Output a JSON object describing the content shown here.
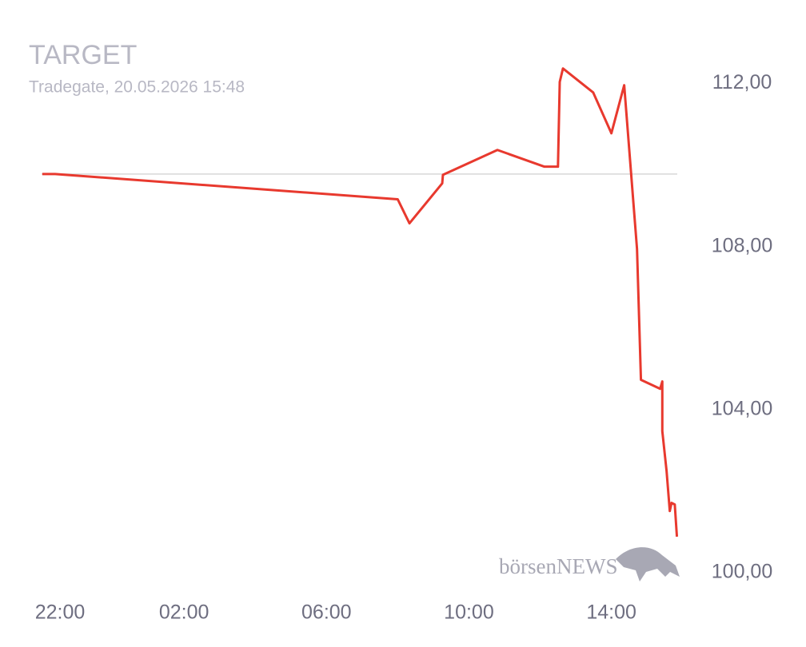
{
  "chart_data": {
    "type": "line",
    "title": "TARGET",
    "subtitle": "Tradegate, 20.05.2026 15:48",
    "watermark": "börsenNEWS",
    "x": [
      22.02,
      22.38,
      32.0,
      32.33,
      33.25,
      33.27,
      34.8,
      36.12,
      36.5,
      36.55,
      36.64,
      37.49,
      38.0,
      38.36,
      38.72,
      38.83,
      39.37,
      39.43,
      39.43,
      39.55,
      39.64,
      39.69,
      39.78,
      39.84
    ],
    "series": [
      {
        "name": "TARGET",
        "color": "#e8392e",
        "values": [
          109.78,
          109.78,
          109.16,
          108.57,
          109.55,
          109.76,
          110.37,
          109.96,
          109.96,
          112.04,
          112.37,
          111.78,
          110.78,
          111.96,
          107.94,
          104.73,
          104.51,
          104.69,
          103.47,
          102.49,
          101.51,
          101.71,
          101.67,
          100.88
        ]
      }
    ],
    "reference_value": 109.78,
    "xlim": [
      22,
      39.85
    ],
    "xticks": [
      {
        "value": 22,
        "label": "22:00"
      },
      {
        "value": 26,
        "label": "02:00"
      },
      {
        "value": 30,
        "label": "06:00"
      },
      {
        "value": 34,
        "label": "10:00"
      },
      {
        "value": 38,
        "label": "14:00"
      }
    ],
    "ylim": [
      99.8,
      112.6
    ],
    "yticks": [
      {
        "value": 100,
        "label": "100,00"
      },
      {
        "value": 104,
        "label": "104,00"
      },
      {
        "value": 108,
        "label": "108,00"
      },
      {
        "value": 112,
        "label": "112,00"
      }
    ]
  }
}
